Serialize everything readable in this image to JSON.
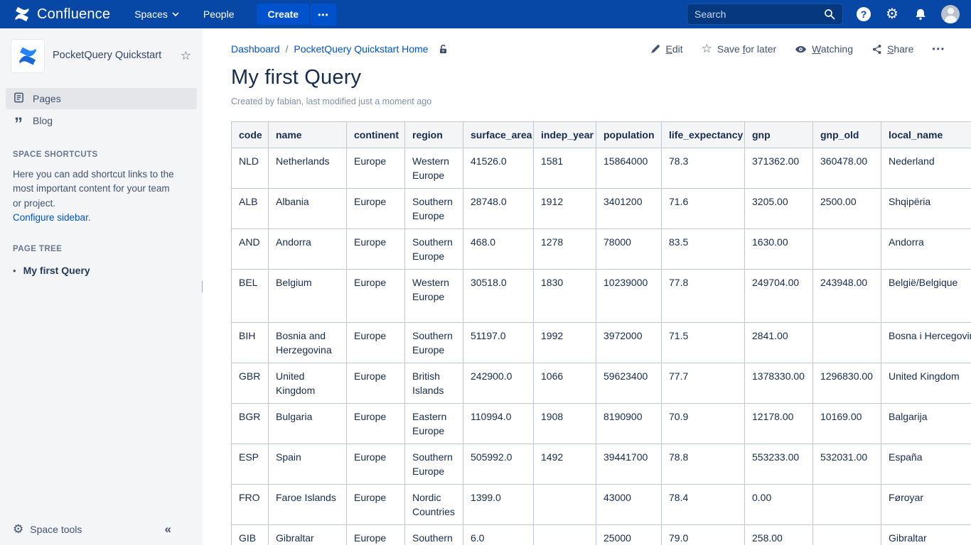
{
  "colors": {
    "navbar": "#0747A6",
    "accent": "#0052CC",
    "text": "#172B4D",
    "table_border": "#C1C7D0",
    "sidebar_bg": "#F4F5F7"
  },
  "navbar": {
    "brand": "Confluence",
    "spaces_label": "Spaces",
    "people_label": "People",
    "create_label": "Create",
    "more_label": "•••",
    "search_placeholder": "Search",
    "help_glyph": "?",
    "gear_glyph": "⚙"
  },
  "sidebar": {
    "space_name": "PocketQuery Quickstart",
    "star_glyph": "☆",
    "nav": [
      {
        "label": "Pages",
        "selected": true
      },
      {
        "label": "Blog",
        "selected": false
      }
    ],
    "blog_quote_glyph": "”",
    "shortcuts_header": "SPACE SHORTCUTS",
    "shortcuts_text": "Here you can add shortcut links to the most important content for your team or project.",
    "configure_link": "Configure sidebar.",
    "page_tree_header": "PAGE TREE",
    "tree_bullet": "•",
    "page_tree_item": "My first Query",
    "space_tools_label": "Space tools",
    "space_tools_gear": "⚙",
    "collapse_glyph": "«"
  },
  "breadcrumb": {
    "item1": "Dashboard",
    "separator": "/",
    "item2": "PocketQuery Quickstart Home"
  },
  "actions": {
    "edit": {
      "pre": "",
      "key": "E",
      "post": "dit"
    },
    "save": {
      "pre": "Save ",
      "key": "f",
      "post": "or later",
      "star_glyph": "☆"
    },
    "watch": {
      "pre": "",
      "key": "W",
      "post": "atching"
    },
    "share": {
      "pre": "",
      "key": "S",
      "post": "hare"
    },
    "more": "•••"
  },
  "page": {
    "title": "My first Query",
    "byline": "Created by fabian, last modified just a moment ago"
  },
  "table": {
    "columns": [
      "code",
      "name",
      "continent",
      "region",
      "surface_area",
      "indep_year",
      "population",
      "life_expectancy",
      "gnp",
      "gnp_old",
      "local_name"
    ],
    "rows": [
      [
        "NLD",
        "Netherlands",
        "Europe",
        "Western Europe",
        "41526.0",
        "1581",
        "15864000",
        "78.3",
        "371362.00",
        "360478.00",
        "Nederland"
      ],
      [
        "ALB",
        "Albania",
        "Europe",
        "Southern Europe",
        "28748.0",
        "1912",
        "3401200",
        "71.6",
        "3205.00",
        "2500.00",
        "Shqipëria"
      ],
      [
        "AND",
        "Andorra",
        "Europe",
        "Southern Europe",
        "468.0",
        "1278",
        "78000",
        "83.5",
        "1630.00",
        "",
        "Andorra"
      ],
      [
        "BEL",
        "Belgium",
        "Europe",
        "Western Europe",
        "30518.0",
        "1830",
        "10239000",
        "77.8",
        "249704.00",
        "243948.00",
        "België/Belgique"
      ],
      [
        "BIH",
        "Bosnia and Herzegovina",
        "Europe",
        "Southern Europe",
        "51197.0",
        "1992",
        "3972000",
        "71.5",
        "2841.00",
        "",
        "Bosna i Hercegovina"
      ],
      [
        "GBR",
        "United Kingdom",
        "Europe",
        "British Islands",
        "242900.0",
        "1066",
        "59623400",
        "77.7",
        "1378330.00",
        "1296830.00",
        "United Kingdom"
      ],
      [
        "BGR",
        "Bulgaria",
        "Europe",
        "Eastern Europe",
        "110994.0",
        "1908",
        "8190900",
        "70.9",
        "12178.00",
        "10169.00",
        "Balgarija"
      ],
      [
        "ESP",
        "Spain",
        "Europe",
        "Southern Europe",
        "505992.0",
        "1492",
        "39441700",
        "78.8",
        "553233.00",
        "532031.00",
        "España"
      ],
      [
        "FRO",
        "Faroe Islands",
        "Europe",
        "Nordic Countries",
        "1399.0",
        "",
        "43000",
        "78.4",
        "0.00",
        "",
        "Føroyar"
      ],
      [
        "GIB",
        "Gibraltar",
        "Europe",
        "Southern Europe",
        "6.0",
        "",
        "25000",
        "79.0",
        "258.00",
        "",
        "Gibraltar"
      ]
    ]
  }
}
